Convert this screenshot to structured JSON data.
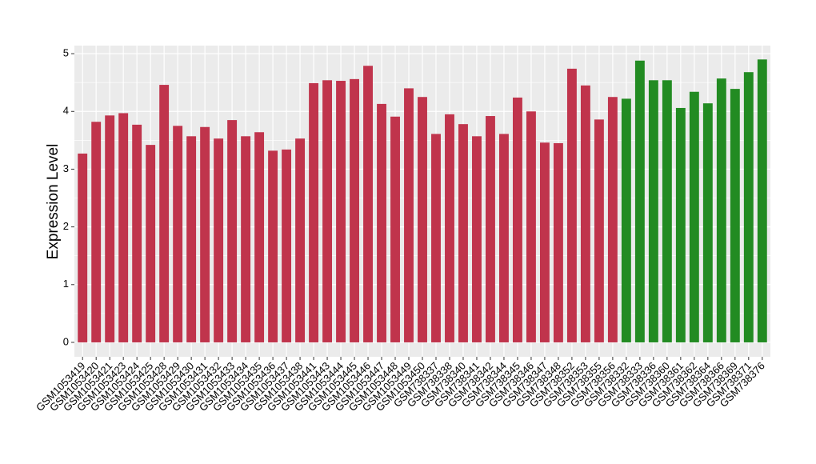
{
  "chart_data": {
    "type": "bar",
    "y_label": "Expression Level",
    "categories": [
      "GSM1053419",
      "GSM1053420",
      "GSM1053421",
      "GSM1053423",
      "GSM1053424",
      "GSM1053425",
      "GSM1053428",
      "GSM1053429",
      "GSM1053430",
      "GSM1053431",
      "GSM1053432",
      "GSM1053433",
      "GSM1053434",
      "GSM1053435",
      "GSM1053436",
      "GSM1053437",
      "GSM1053438",
      "GSM1053441",
      "GSM1053443",
      "GSM1053444",
      "GSM1053445",
      "GSM1053446",
      "GSM1053447",
      "GSM1053448",
      "GSM1053449",
      "GSM1053450",
      "GSM738337",
      "GSM738338",
      "GSM738340",
      "GSM738341",
      "GSM738342",
      "GSM738344",
      "GSM738345",
      "GSM738346",
      "GSM738347",
      "GSM738348",
      "GSM738352",
      "GSM738353",
      "GSM738355",
      "GSM738356",
      "GSM738332",
      "GSM738333",
      "GSM738336",
      "GSM738360",
      "GSM738361",
      "GSM738362",
      "GSM738364",
      "GSM738366",
      "GSM738369",
      "GSM738371",
      "GSM738376"
    ],
    "values": [
      3.27,
      3.82,
      3.93,
      3.97,
      3.77,
      3.42,
      4.46,
      3.75,
      3.57,
      3.73,
      3.53,
      3.85,
      3.57,
      3.64,
      3.32,
      3.34,
      3.53,
      4.49,
      4.54,
      4.53,
      4.56,
      4.79,
      4.13,
      3.91,
      4.4,
      4.25,
      3.61,
      3.95,
      3.78,
      3.57,
      3.92,
      3.61,
      4.24,
      4.0,
      3.46,
      3.45,
      4.74,
      4.45,
      3.86,
      4.25,
      4.22,
      4.88,
      4.54,
      4.54,
      4.06,
      4.34,
      4.14,
      4.57,
      4.39,
      4.68,
      4.9
    ],
    "colors": [
      "#c0344c",
      "#c0344c",
      "#c0344c",
      "#c0344c",
      "#c0344c",
      "#c0344c",
      "#c0344c",
      "#c0344c",
      "#c0344c",
      "#c0344c",
      "#c0344c",
      "#c0344c",
      "#c0344c",
      "#c0344c",
      "#c0344c",
      "#c0344c",
      "#c0344c",
      "#c0344c",
      "#c0344c",
      "#c0344c",
      "#c0344c",
      "#c0344c",
      "#c0344c",
      "#c0344c",
      "#c0344c",
      "#c0344c",
      "#c0344c",
      "#c0344c",
      "#c0344c",
      "#c0344c",
      "#c0344c",
      "#c0344c",
      "#c0344c",
      "#c0344c",
      "#c0344c",
      "#c0344c",
      "#c0344c",
      "#c0344c",
      "#c0344c",
      "#c0344c",
      "#228b22",
      "#228b22",
      "#228b22",
      "#228b22",
      "#228b22",
      "#228b22",
      "#228b22",
      "#228b22",
      "#228b22",
      "#228b22",
      "#228b22"
    ],
    "ylim": [
      -0.25,
      5.14
    ],
    "yticks": [
      0,
      1,
      2,
      3,
      4,
      5
    ],
    "grid": true
  }
}
